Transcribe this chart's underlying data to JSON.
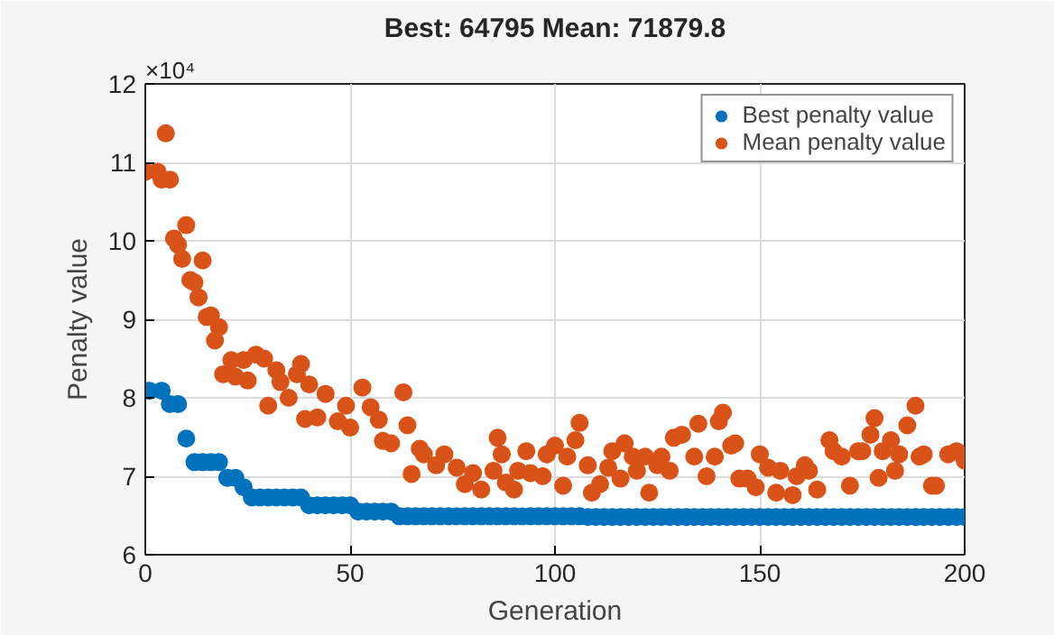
{
  "chart_data": {
    "type": "scatter",
    "title": "Best: 64795 Mean: 71879.8",
    "xlabel": "Generation",
    "ylabel": "Penalty value",
    "annotations": [
      "×10⁴"
    ],
    "xlim": [
      0,
      200
    ],
    "xticks": [
      0,
      50,
      100,
      150,
      200
    ],
    "ylim": [
      6,
      12
    ],
    "yticks": [
      6,
      7,
      8,
      9,
      10,
      11,
      12
    ],
    "grid": true,
    "legend": "top right",
    "marker": "circle",
    "series": [
      {
        "name": "Best penalty value",
        "color": "#0072bd",
        "x": [
          1,
          4,
          6,
          8,
          10,
          12,
          14,
          16,
          18,
          20,
          22,
          24,
          26,
          28,
          30,
          32,
          34,
          36,
          38,
          40,
          42,
          44,
          46,
          48,
          50,
          52,
          54,
          56,
          58,
          60,
          62,
          64,
          66,
          68,
          70,
          72,
          74,
          76,
          78,
          80,
          82,
          84,
          86,
          88,
          90,
          92,
          94,
          96,
          98,
          100,
          102,
          104,
          106,
          108,
          110,
          112,
          114,
          116,
          118,
          120,
          122,
          124,
          126,
          128,
          130,
          132,
          134,
          136,
          138,
          140,
          142,
          144,
          146,
          148,
          150,
          152,
          154,
          156,
          158,
          160,
          162,
          164,
          166,
          168,
          170,
          172,
          174,
          176,
          178,
          180,
          182,
          184,
          186,
          188,
          190,
          192,
          194,
          196,
          198,
          200
        ],
        "values": [
          8.09,
          8.09,
          7.92,
          7.92,
          7.48,
          7.18,
          7.18,
          7.18,
          7.18,
          6.98,
          6.98,
          6.86,
          6.73,
          6.73,
          6.73,
          6.73,
          6.73,
          6.73,
          6.73,
          6.63,
          6.63,
          6.63,
          6.63,
          6.63,
          6.63,
          6.55,
          6.55,
          6.55,
          6.55,
          6.55,
          6.49,
          6.49,
          6.49,
          6.49,
          6.49,
          6.49,
          6.49,
          6.49,
          6.49,
          6.49,
          6.49,
          6.49,
          6.49,
          6.49,
          6.49,
          6.49,
          6.49,
          6.49,
          6.49,
          6.49,
          6.49,
          6.49,
          6.49,
          6.48,
          6.48,
          6.48,
          6.48,
          6.48,
          6.48,
          6.48,
          6.48,
          6.48,
          6.48,
          6.48,
          6.48,
          6.48,
          6.48,
          6.48,
          6.48,
          6.48,
          6.48,
          6.48,
          6.48,
          6.48,
          6.48,
          6.48,
          6.48,
          6.48,
          6.48,
          6.48,
          6.48,
          6.48,
          6.48,
          6.48,
          6.48,
          6.48,
          6.48,
          6.48,
          6.48,
          6.48,
          6.48,
          6.48,
          6.48,
          6.48,
          6.48,
          6.48,
          6.48,
          6.48,
          6.48,
          6.48
        ]
      },
      {
        "name": "Mean penalty value",
        "color": "#d95319",
        "x": [
          0,
          3,
          4,
          5,
          6,
          7,
          8,
          9,
          10,
          11,
          12,
          13,
          14,
          15,
          16,
          17,
          18,
          19,
          21,
          22,
          24,
          25,
          27,
          29,
          30,
          32,
          33,
          35,
          37,
          38,
          39,
          40,
          42,
          44,
          47,
          49,
          50,
          53,
          55,
          57,
          58,
          60,
          63,
          64,
          65,
          67,
          68,
          71,
          73,
          76,
          78,
          80,
          82,
          85,
          86,
          87,
          88,
          90,
          91,
          93,
          94,
          97,
          98,
          100,
          102,
          103,
          105,
          106,
          108,
          109,
          111,
          113,
          114,
          116,
          117,
          119,
          120,
          122,
          123,
          125,
          126,
          128,
          129,
          131,
          134,
          135,
          137,
          139,
          140,
          141,
          143,
          144,
          145,
          147,
          149,
          150,
          152,
          154,
          155,
          158,
          159,
          161,
          162,
          164,
          167,
          168,
          170,
          172,
          174,
          175,
          177,
          178,
          179,
          180,
          182,
          183,
          184,
          186,
          188,
          189,
          190,
          192,
          193,
          196,
          198,
          200
        ],
        "values": [
          10.88,
          10.88,
          10.78,
          11.37,
          10.78,
          10.03,
          9.95,
          9.77,
          10.2,
          9.5,
          9.47,
          9.28,
          9.75,
          9.03,
          9.05,
          8.73,
          8.9,
          8.3,
          8.48,
          8.27,
          8.48,
          8.22,
          8.55,
          8.5,
          7.9,
          8.35,
          8.2,
          8.0,
          8.3,
          8.43,
          7.73,
          8.17,
          7.75,
          8.05,
          7.7,
          7.9,
          7.62,
          8.13,
          7.88,
          7.72,
          7.45,
          7.42,
          8.07,
          7.65,
          7.03,
          7.35,
          7.28,
          7.14,
          7.28,
          7.11,
          6.9,
          7.04,
          6.83,
          7.07,
          7.49,
          7.28,
          6.92,
          6.83,
          7.07,
          7.32,
          7.04,
          7.0,
          7.28,
          7.39,
          6.88,
          7.25,
          7.46,
          7.68,
          7.14,
          6.79,
          6.9,
          7.11,
          7.32,
          6.97,
          7.42,
          7.25,
          7.07,
          7.25,
          6.79,
          7.14,
          7.25,
          7.07,
          7.49,
          7.53,
          7.25,
          7.67,
          7.0,
          7.25,
          7.7,
          7.81,
          7.39,
          7.42,
          6.97,
          6.97,
          6.86,
          7.28,
          7.11,
          6.79,
          7.07,
          6.76,
          7.0,
          7.14,
          7.07,
          6.83,
          7.46,
          7.32,
          7.25,
          6.88,
          7.32,
          7.32,
          7.53,
          7.74,
          6.98,
          7.32,
          7.46,
          7.07,
          7.28,
          7.65,
          7.9,
          7.25,
          7.28,
          6.88,
          6.88,
          7.28,
          7.32,
          7.2
        ]
      }
    ]
  }
}
